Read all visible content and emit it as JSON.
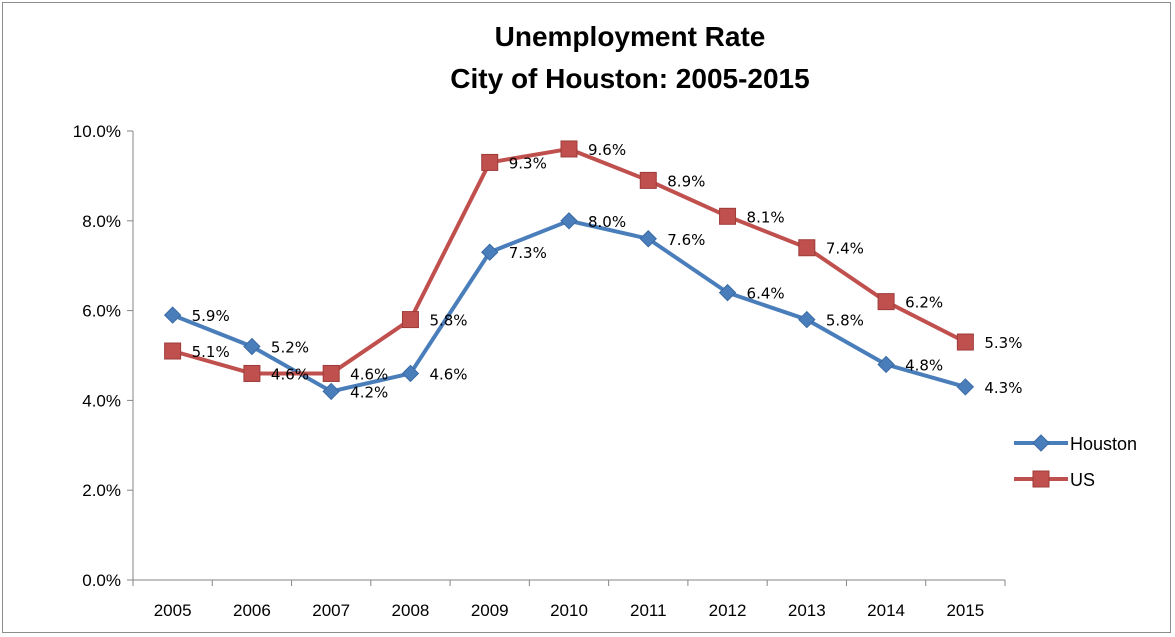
{
  "chart_data": {
    "type": "line",
    "title": "Unemployment Rate",
    "subtitle": "City of Houston: 2005-2015",
    "xlabel": "",
    "ylabel": "",
    "categories": [
      "2005",
      "2006",
      "2007",
      "2008",
      "2009",
      "2010",
      "2011",
      "2012",
      "2013",
      "2014",
      "2015"
    ],
    "ylim": [
      0,
      10
    ],
    "yticks": [
      "0.0%",
      "2.0%",
      "4.0%",
      "6.0%",
      "8.0%",
      "10.0%"
    ],
    "grid": false,
    "legend_position": "right",
    "series": [
      {
        "name": "Houston",
        "color": "#4a7ebb",
        "marker": "diamond",
        "values": [
          5.9,
          5.2,
          4.2,
          4.6,
          7.3,
          8.0,
          7.6,
          6.4,
          5.8,
          4.8,
          4.3
        ],
        "labels": [
          "5.9%",
          "5.2%",
          "4.2%",
          "4.6%",
          "7.3%",
          "8.0%",
          "7.6%",
          "6.4%",
          "5.8%",
          "4.8%",
          "4.3%"
        ]
      },
      {
        "name": "US",
        "color": "#c0504d",
        "marker": "square",
        "values": [
          5.1,
          4.6,
          4.6,
          5.8,
          9.3,
          9.6,
          8.9,
          8.1,
          7.4,
          6.2,
          5.3
        ],
        "labels": [
          "5.1%",
          "4.6%",
          "4.6%",
          "5.8%",
          "9.3%",
          "9.6%",
          "8.9%",
          "8.1%",
          "7.4%",
          "6.2%",
          "5.3%"
        ]
      }
    ]
  }
}
